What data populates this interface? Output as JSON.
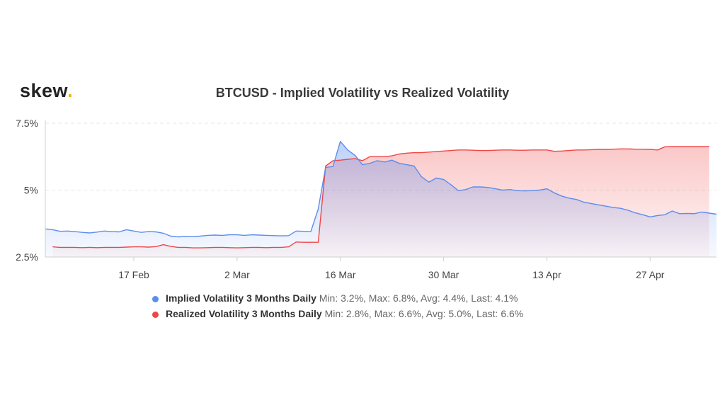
{
  "brand": {
    "name": "skew",
    "dot": "."
  },
  "chart_data": {
    "type": "area",
    "title": "BTCUSD - Implied Volatility vs Realized Volatility",
    "xlabel": "",
    "ylabel": "",
    "ylim": [
      2.5,
      7.5
    ],
    "xlim": [
      "2020-02-05",
      "2020-05-06"
    ],
    "y_ticks": [
      {
        "value": 7.5,
        "label": "7.5%"
      },
      {
        "value": 5,
        "label": "5%"
      },
      {
        "value": 2.5,
        "label": "2.5%"
      }
    ],
    "x_ticks": [
      {
        "date": "2020-02-17",
        "label": "17 Feb"
      },
      {
        "date": "2020-03-02",
        "label": "2 Mar"
      },
      {
        "date": "2020-03-16",
        "label": "16 Mar"
      },
      {
        "date": "2020-03-30",
        "label": "30 Mar"
      },
      {
        "date": "2020-04-13",
        "label": "13 Apr"
      },
      {
        "date": "2020-04-27",
        "label": "27 Apr"
      }
    ],
    "grid": true,
    "legend_position": "bottom",
    "series": [
      {
        "name": "Implied Volatility 3 Months Daily",
        "stats": "Min: 3.2%, Max: 6.8%, Avg: 4.4%, Last: 4.1%",
        "color": "#5b8def",
        "points": [
          [
            "2020-02-05",
            3.55
          ],
          [
            "2020-02-06",
            3.52
          ],
          [
            "2020-02-07",
            3.46
          ],
          [
            "2020-02-08",
            3.47
          ],
          [
            "2020-02-09",
            3.45
          ],
          [
            "2020-02-10",
            3.42
          ],
          [
            "2020-02-11",
            3.4
          ],
          [
            "2020-02-12",
            3.43
          ],
          [
            "2020-02-13",
            3.47
          ],
          [
            "2020-02-14",
            3.45
          ],
          [
            "2020-02-15",
            3.44
          ],
          [
            "2020-02-16",
            3.52
          ],
          [
            "2020-02-17",
            3.47
          ],
          [
            "2020-02-18",
            3.42
          ],
          [
            "2020-02-19",
            3.45
          ],
          [
            "2020-02-20",
            3.44
          ],
          [
            "2020-02-21",
            3.39
          ],
          [
            "2020-02-22",
            3.28
          ],
          [
            "2020-02-23",
            3.25
          ],
          [
            "2020-02-24",
            3.27
          ],
          [
            "2020-02-25",
            3.26
          ],
          [
            "2020-02-26",
            3.28
          ],
          [
            "2020-02-27",
            3.31
          ],
          [
            "2020-02-28",
            3.32
          ],
          [
            "2020-02-29",
            3.31
          ],
          [
            "2020-03-01",
            3.33
          ],
          [
            "2020-03-02",
            3.33
          ],
          [
            "2020-03-03",
            3.31
          ],
          [
            "2020-03-04",
            3.33
          ],
          [
            "2020-03-05",
            3.32
          ],
          [
            "2020-03-06",
            3.31
          ],
          [
            "2020-03-07",
            3.3
          ],
          [
            "2020-03-08",
            3.29
          ],
          [
            "2020-03-09",
            3.3
          ],
          [
            "2020-03-10",
            3.47
          ],
          [
            "2020-03-11",
            3.46
          ],
          [
            "2020-03-12",
            3.45
          ],
          [
            "2020-03-13",
            4.3
          ],
          [
            "2020-03-14",
            5.85
          ],
          [
            "2020-03-15",
            5.88
          ],
          [
            "2020-03-16",
            6.82
          ],
          [
            "2020-03-17",
            6.5
          ],
          [
            "2020-03-18",
            6.3
          ],
          [
            "2020-03-19",
            5.95
          ],
          [
            "2020-03-20",
            6.0
          ],
          [
            "2020-03-21",
            6.1
          ],
          [
            "2020-03-22",
            6.05
          ],
          [
            "2020-03-23",
            6.12
          ],
          [
            "2020-03-24",
            6.0
          ],
          [
            "2020-03-25",
            5.95
          ],
          [
            "2020-03-26",
            5.9
          ],
          [
            "2020-03-27",
            5.5
          ],
          [
            "2020-03-28",
            5.3
          ],
          [
            "2020-03-29",
            5.45
          ],
          [
            "2020-03-30",
            5.4
          ],
          [
            "2020-03-31",
            5.2
          ],
          [
            "2020-04-01",
            4.98
          ],
          [
            "2020-04-02",
            5.02
          ],
          [
            "2020-04-03",
            5.12
          ],
          [
            "2020-04-04",
            5.12
          ],
          [
            "2020-04-05",
            5.1
          ],
          [
            "2020-04-06",
            5.05
          ],
          [
            "2020-04-07",
            5.0
          ],
          [
            "2020-04-08",
            5.02
          ],
          [
            "2020-04-09",
            4.98
          ],
          [
            "2020-04-10",
            4.97
          ],
          [
            "2020-04-11",
            4.98
          ],
          [
            "2020-04-12",
            5.0
          ],
          [
            "2020-04-13",
            5.05
          ],
          [
            "2020-04-14",
            4.9
          ],
          [
            "2020-04-15",
            4.78
          ],
          [
            "2020-04-16",
            4.7
          ],
          [
            "2020-04-17",
            4.65
          ],
          [
            "2020-04-18",
            4.55
          ],
          [
            "2020-04-19",
            4.5
          ],
          [
            "2020-04-20",
            4.45
          ],
          [
            "2020-04-21",
            4.4
          ],
          [
            "2020-04-22",
            4.35
          ],
          [
            "2020-04-23",
            4.32
          ],
          [
            "2020-04-24",
            4.25
          ],
          [
            "2020-04-25",
            4.15
          ],
          [
            "2020-04-26",
            4.08
          ],
          [
            "2020-04-27",
            4.0
          ],
          [
            "2020-04-28",
            4.05
          ],
          [
            "2020-04-29",
            4.08
          ],
          [
            "2020-04-30",
            4.22
          ],
          [
            "2020-05-01",
            4.12
          ],
          [
            "2020-05-02",
            4.13
          ],
          [
            "2020-05-03",
            4.12
          ],
          [
            "2020-05-04",
            4.18
          ],
          [
            "2020-05-05",
            4.14
          ],
          [
            "2020-05-06",
            4.1
          ]
        ]
      },
      {
        "name": "Realized Volatility 3 Months Daily",
        "stats": "Min: 2.8%, Max: 6.6%, Avg: 5.0%, Last: 6.6%",
        "color": "#f04646",
        "points": [
          [
            "2020-02-06",
            2.88
          ],
          [
            "2020-02-07",
            2.86
          ],
          [
            "2020-02-08",
            2.86
          ],
          [
            "2020-02-09",
            2.86
          ],
          [
            "2020-02-10",
            2.85
          ],
          [
            "2020-02-11",
            2.86
          ],
          [
            "2020-02-12",
            2.85
          ],
          [
            "2020-02-13",
            2.86
          ],
          [
            "2020-02-14",
            2.86
          ],
          [
            "2020-02-15",
            2.86
          ],
          [
            "2020-02-16",
            2.87
          ],
          [
            "2020-02-17",
            2.88
          ],
          [
            "2020-02-18",
            2.88
          ],
          [
            "2020-02-19",
            2.87
          ],
          [
            "2020-02-20",
            2.89
          ],
          [
            "2020-02-21",
            2.96
          ],
          [
            "2020-02-22",
            2.9
          ],
          [
            "2020-02-23",
            2.86
          ],
          [
            "2020-02-24",
            2.86
          ],
          [
            "2020-02-25",
            2.84
          ],
          [
            "2020-02-26",
            2.84
          ],
          [
            "2020-02-27",
            2.85
          ],
          [
            "2020-02-28",
            2.86
          ],
          [
            "2020-02-29",
            2.86
          ],
          [
            "2020-03-01",
            2.85
          ],
          [
            "2020-03-02",
            2.84
          ],
          [
            "2020-03-03",
            2.85
          ],
          [
            "2020-03-04",
            2.86
          ],
          [
            "2020-03-05",
            2.86
          ],
          [
            "2020-03-06",
            2.85
          ],
          [
            "2020-03-07",
            2.86
          ],
          [
            "2020-03-08",
            2.86
          ],
          [
            "2020-03-09",
            2.88
          ],
          [
            "2020-03-10",
            3.06
          ],
          [
            "2020-03-11",
            3.05
          ],
          [
            "2020-03-12",
            3.05
          ],
          [
            "2020-03-13",
            3.05
          ],
          [
            "2020-03-14",
            5.9
          ],
          [
            "2020-03-15",
            6.1
          ],
          [
            "2020-03-16",
            6.12
          ],
          [
            "2020-03-17",
            6.15
          ],
          [
            "2020-03-18",
            6.18
          ],
          [
            "2020-03-19",
            6.1
          ],
          [
            "2020-03-20",
            6.25
          ],
          [
            "2020-03-21",
            6.25
          ],
          [
            "2020-03-22",
            6.25
          ],
          [
            "2020-03-23",
            6.28
          ],
          [
            "2020-03-24",
            6.35
          ],
          [
            "2020-03-25",
            6.38
          ],
          [
            "2020-03-26",
            6.4
          ],
          [
            "2020-03-27",
            6.4
          ],
          [
            "2020-03-28",
            6.42
          ],
          [
            "2020-03-29",
            6.44
          ],
          [
            "2020-03-30",
            6.46
          ],
          [
            "2020-03-31",
            6.48
          ],
          [
            "2020-04-01",
            6.5
          ],
          [
            "2020-04-02",
            6.5
          ],
          [
            "2020-04-03",
            6.49
          ],
          [
            "2020-04-04",
            6.48
          ],
          [
            "2020-04-05",
            6.48
          ],
          [
            "2020-04-06",
            6.49
          ],
          [
            "2020-04-07",
            6.5
          ],
          [
            "2020-04-08",
            6.5
          ],
          [
            "2020-04-09",
            6.49
          ],
          [
            "2020-04-10",
            6.49
          ],
          [
            "2020-04-11",
            6.5
          ],
          [
            "2020-04-12",
            6.5
          ],
          [
            "2020-04-13",
            6.5
          ],
          [
            "2020-04-14",
            6.45
          ],
          [
            "2020-04-15",
            6.46
          ],
          [
            "2020-04-16",
            6.48
          ],
          [
            "2020-04-17",
            6.5
          ],
          [
            "2020-04-18",
            6.5
          ],
          [
            "2020-04-19",
            6.51
          ],
          [
            "2020-04-20",
            6.52
          ],
          [
            "2020-04-21",
            6.52
          ],
          [
            "2020-04-22",
            6.53
          ],
          [
            "2020-04-23",
            6.54
          ],
          [
            "2020-04-24",
            6.54
          ],
          [
            "2020-04-25",
            6.53
          ],
          [
            "2020-04-26",
            6.53
          ],
          [
            "2020-04-27",
            6.52
          ],
          [
            "2020-04-28",
            6.5
          ],
          [
            "2020-04-29",
            6.62
          ],
          [
            "2020-04-30",
            6.63
          ],
          [
            "2020-05-01",
            6.63
          ],
          [
            "2020-05-02",
            6.63
          ],
          [
            "2020-05-03",
            6.63
          ],
          [
            "2020-05-04",
            6.63
          ],
          [
            "2020-05-05",
            6.63
          ]
        ]
      }
    ]
  }
}
